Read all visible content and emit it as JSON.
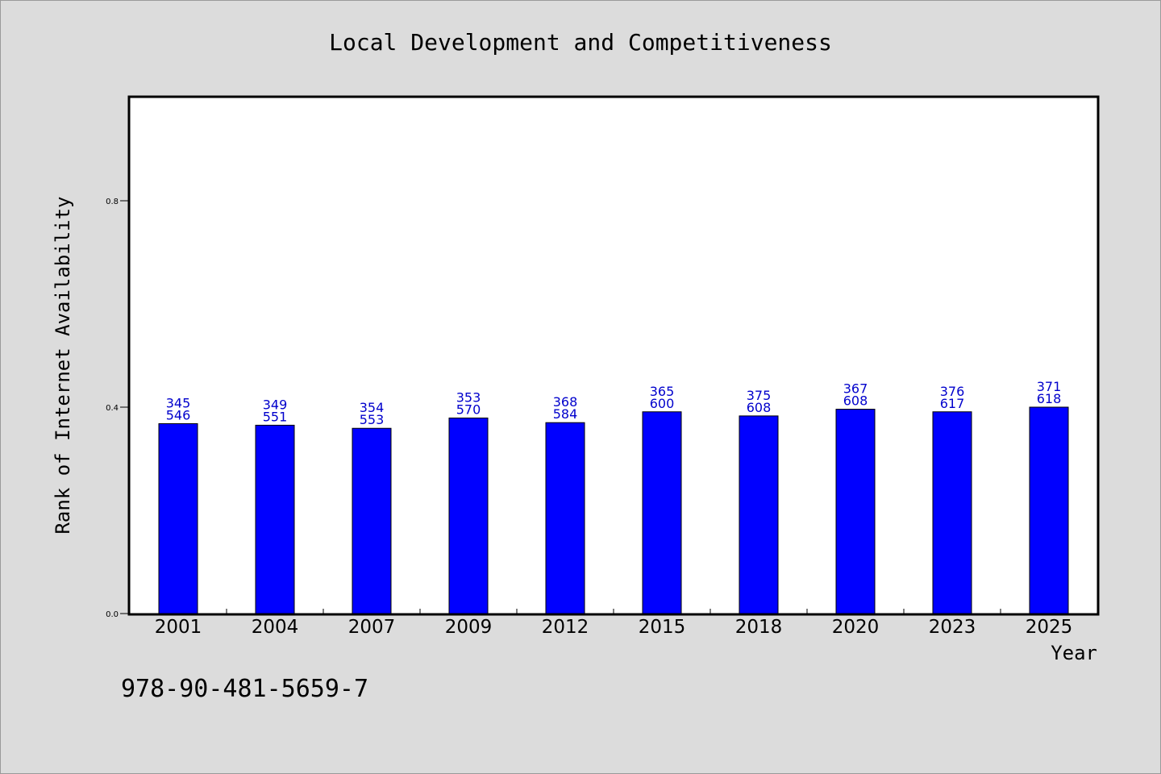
{
  "chart_data": {
    "type": "bar",
    "title": "Local Development and Competitiveness",
    "xlabel": "Year",
    "ylabel": "Rank of Internet Availability",
    "categories": [
      "2001",
      "2004",
      "2007",
      "2009",
      "2012",
      "2015",
      "2018",
      "2020",
      "2023",
      "2025"
    ],
    "values": [
      0.368,
      0.365,
      0.359,
      0.379,
      0.37,
      0.391,
      0.383,
      0.396,
      0.391,
      0.4
    ],
    "label_top": [
      "345",
      "349",
      "354",
      "353",
      "368",
      "365",
      "375",
      "367",
      "376",
      "371"
    ],
    "label_bottom": [
      "546",
      "551",
      "553",
      "570",
      "584",
      "600",
      "608",
      "608",
      "617",
      "618"
    ],
    "ylim": [
      0,
      1.0
    ],
    "yticks": [
      0.0,
      0.4,
      0.8
    ],
    "ytick_labels": [
      "0.0",
      "0.4",
      "0.8"
    ],
    "grid": false,
    "bar_color": "#0000ff",
    "label_color": "#0000cc"
  },
  "footer": {
    "isbn": "978-90-481-5659-7"
  }
}
